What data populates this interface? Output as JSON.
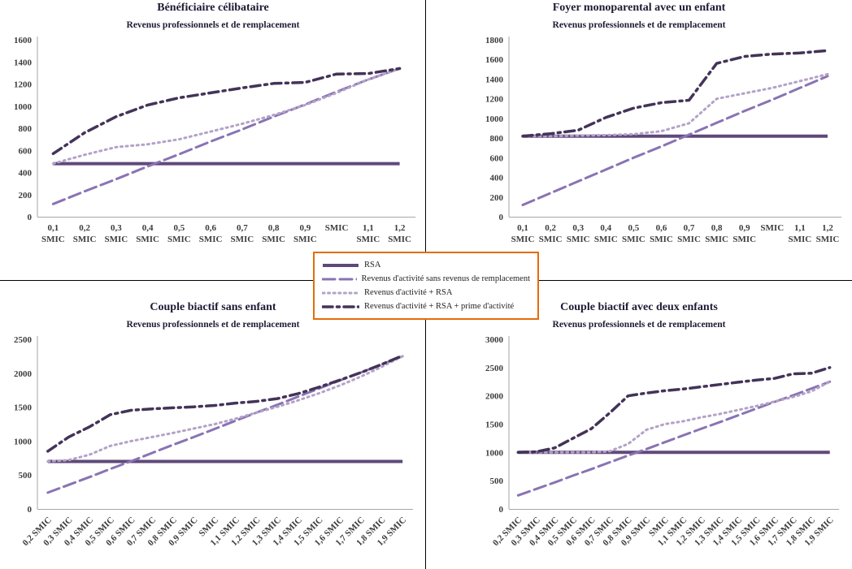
{
  "legend": {
    "position": "center",
    "border_color": "#e46c0a",
    "items": [
      {
        "label": "RSA",
        "color": "#5f497a",
        "style": "solid"
      },
      {
        "label": "Revenus d'activité sans revenus de remplacement",
        "color": "#8973b3",
        "style": "long-dash"
      },
      {
        "label": "Revenus d'activité + RSA",
        "color": "#b3a2c7",
        "style": "dotted"
      },
      {
        "label": "Revenus d'activité + RSA + prime d'activité",
        "color": "#443358",
        "style": "dash-dot"
      }
    ]
  },
  "chart_data": [
    {
      "type": "line",
      "title": "Bénéficiaire célibataire",
      "subtitle": "Revenus professionnels et de remplacement",
      "ylim": [
        0,
        1600
      ],
      "ytick_step": 200,
      "x_labels_rotated": false,
      "x_labels": [
        "0,1 SMIC",
        "0,2 SMIC",
        "0,3 SMIC",
        "0,4 SMIC",
        "0,5 SMIC",
        "0,6 SMIC",
        "0,7 SMIC",
        "0,8 SMIC",
        "0,9 SMIC",
        "SMIC",
        "1,1 SMIC",
        "1,2 SMIC"
      ],
      "series": [
        {
          "name": "RSA",
          "values": [
            480,
            480,
            480,
            480,
            480,
            480,
            480,
            480,
            480,
            480,
            480,
            480
          ]
        },
        {
          "name": "Revenus d'activité sans revenus de remplacement",
          "values": [
            115,
            230,
            340,
            455,
            565,
            680,
            790,
            905,
            1015,
            1130,
            1240,
            1340
          ]
        },
        {
          "name": "Revenus d'activité + RSA",
          "values": [
            480,
            560,
            630,
            655,
            700,
            770,
            840,
            920,
            1010,
            1120,
            1240,
            1340
          ]
        },
        {
          "name": "Revenus d'activité + RSA + prime d'activité",
          "values": [
            570,
            760,
            905,
            1010,
            1075,
            1120,
            1165,
            1205,
            1215,
            1290,
            1295,
            1340
          ]
        }
      ]
    },
    {
      "type": "line",
      "title": "Foyer monoparental avec un enfant",
      "subtitle": "Revenus professionnels et de remplacement",
      "ylim": [
        0,
        1800
      ],
      "ytick_step": 200,
      "x_labels_rotated": false,
      "x_labels": [
        "0,1 SMIC",
        "0,2 SMIC",
        "0,3 SMIC",
        "0,4 SMIC",
        "0,5 SMIC",
        "0,6 SMIC",
        "0,7 SMIC",
        "0,8 SMIC",
        "0,9 SMIC",
        "SMIC",
        "1,1 SMIC",
        "1,2 SMIC"
      ],
      "series": [
        {
          "name": "RSA",
          "values": [
            820,
            820,
            820,
            820,
            820,
            820,
            820,
            820,
            820,
            820,
            820,
            820
          ]
        },
        {
          "name": "Revenus d'activité sans revenus de remplacement",
          "values": [
            120,
            240,
            360,
            480,
            600,
            715,
            835,
            955,
            1075,
            1190,
            1310,
            1430
          ]
        },
        {
          "name": "Revenus d'activité + RSA",
          "values": [
            820,
            820,
            825,
            830,
            840,
            870,
            950,
            1200,
            1255,
            1310,
            1380,
            1450
          ]
        },
        {
          "name": "Revenus d'activité + RSA + prime d'activité",
          "values": [
            820,
            845,
            880,
            1010,
            1105,
            1160,
            1185,
            1560,
            1630,
            1655,
            1665,
            1690
          ]
        }
      ]
    },
    {
      "type": "line",
      "title": "Couple biactif sans enfant",
      "subtitle": "Revenus professionnels et de remplacement",
      "ylim": [
        0,
        2500
      ],
      "ytick_step": 500,
      "x_labels_rotated": true,
      "x_labels": [
        "0,2 SMIC",
        "0,3 SMIC",
        "0,4 SMIC",
        "0,5 SMIC",
        "0,6 SMIC",
        "0,7 SMIC",
        "0,8 SMIC",
        "0,9 SMIC",
        "SMIC",
        "1,1 SMIC",
        "1,2 SMIC",
        "1,3 SMIC",
        "1,4 SMIC",
        "1,5 SMIC",
        "1,6 SMIC",
        "1,7 SMIC",
        "1,8 SMIC",
        "1,9 SMIC"
      ],
      "series": [
        {
          "name": "RSA",
          "values": [
            700,
            700,
            700,
            700,
            700,
            700,
            700,
            700,
            700,
            700,
            700,
            700,
            700,
            700,
            700,
            700,
            700,
            700
          ]
        },
        {
          "name": "Revenus d'activité sans revenus de remplacement",
          "values": [
            240,
            355,
            470,
            590,
            705,
            825,
            945,
            1060,
            1180,
            1300,
            1420,
            1535,
            1655,
            1775,
            1895,
            2010,
            2130,
            2250
          ]
        },
        {
          "name": "Revenus d'activité + RSA",
          "values": [
            700,
            720,
            800,
            930,
            1000,
            1060,
            1120,
            1185,
            1250,
            1330,
            1420,
            1505,
            1600,
            1705,
            1820,
            1950,
            2095,
            2250
          ]
        },
        {
          "name": "Revenus d'activité + RSA + prime d'activité",
          "values": [
            850,
            1060,
            1210,
            1390,
            1455,
            1475,
            1490,
            1505,
            1525,
            1560,
            1585,
            1625,
            1700,
            1795,
            1900,
            2010,
            2130,
            2260
          ]
        }
      ]
    },
    {
      "type": "line",
      "title": "Couple biactif avec deux enfants",
      "subtitle": "Revenus professionnels et de remplacement",
      "ylim": [
        0,
        3000
      ],
      "ytick_step": 500,
      "x_labels_rotated": true,
      "x_labels": [
        "0,2 SMIC",
        "0,3 SMIC",
        "0,4 SMIC",
        "0,5 SMIC",
        "0,6 SMIC",
        "0,7 SMIC",
        "0,8 SMIC",
        "0,9 SMIC",
        "SMIC",
        "1,1 SMIC",
        "1,2 SMIC",
        "1,3 SMIC",
        "1,4 SMIC",
        "1,5 SMIC",
        "1,6 SMIC",
        "1,7 SMIC",
        "1,8 SMIC",
        "1,9 SMIC"
      ],
      "series": [
        {
          "name": "RSA",
          "values": [
            1000,
            1000,
            1000,
            1000,
            1000,
            1000,
            1000,
            1000,
            1000,
            1000,
            1000,
            1000,
            1000,
            1000,
            1000,
            1000,
            1000,
            1000
          ]
        },
        {
          "name": "Revenus d'activité sans revenus de remplacement",
          "values": [
            240,
            355,
            470,
            590,
            705,
            825,
            945,
            1060,
            1180,
            1300,
            1420,
            1535,
            1655,
            1775,
            1895,
            2010,
            2130,
            2250
          ]
        },
        {
          "name": "Revenus d'activité + RSA",
          "values": [
            1000,
            1000,
            1000,
            1000,
            1000,
            1020,
            1150,
            1400,
            1500,
            1550,
            1620,
            1680,
            1750,
            1820,
            1900,
            1980,
            2080,
            2250
          ]
        },
        {
          "name": "Revenus d'activité + RSA + prime d'activité",
          "values": [
            1000,
            1010,
            1080,
            1250,
            1420,
            1700,
            2000,
            2050,
            2090,
            2120,
            2160,
            2200,
            2240,
            2280,
            2310,
            2390,
            2400,
            2500
          ]
        }
      ]
    }
  ]
}
